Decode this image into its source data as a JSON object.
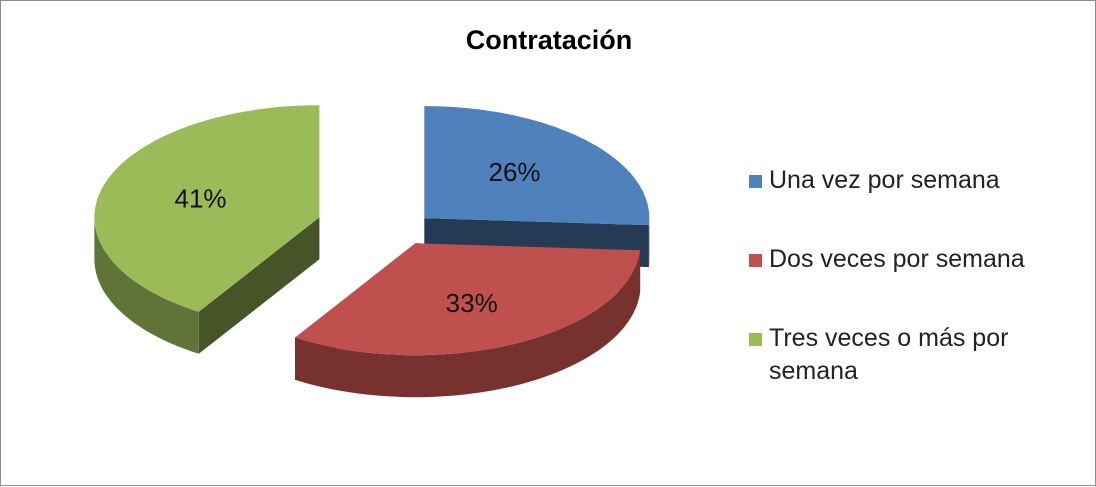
{
  "chart_data": {
    "type": "pie",
    "title": "Contratación",
    "categories": [
      "Una vez por semana",
      "Dos veces por semana",
      "Tres veces o más por semana"
    ],
    "values": [
      26,
      33,
      41
    ],
    "value_labels": [
      "26%",
      "33%",
      "41%"
    ],
    "colors": [
      "#4f81bd",
      "#c0504d",
      "#9bbb59"
    ],
    "legend": "right"
  }
}
